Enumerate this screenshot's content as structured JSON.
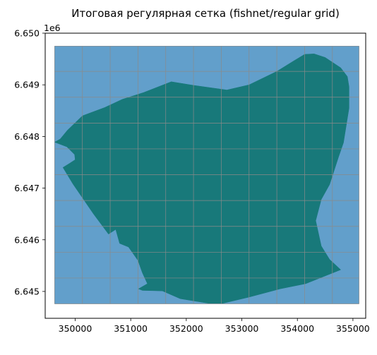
{
  "chart_data": {
    "type": "map",
    "title": "Итоговая регулярная сетка (fishnet/regular grid)",
    "y_offset_label": "1e6",
    "xlim": [
      349460,
      355230
    ],
    "ylim": [
      6644480,
      6650000
    ],
    "x_ticks": [
      350000,
      351000,
      352000,
      353000,
      354000,
      355000
    ],
    "x_tick_labels": [
      "350000",
      "351000",
      "352000",
      "353000",
      "354000",
      "355000"
    ],
    "y_ticks": [
      6645000,
      6646000,
      6647000,
      6648000,
      6649000,
      6650000
    ],
    "y_tick_labels": [
      "6.645",
      "6.646",
      "6.647",
      "6.648",
      "6.649",
      "6.650"
    ],
    "grid_extent": {
      "x": [
        349630,
        355110
      ],
      "y": [
        6644760,
        6649750
      ]
    },
    "grid_x_lines": [
      349630,
      350130,
      350630,
      351130,
      351630,
      352130,
      352630,
      353130,
      353630,
      354130,
      354630,
      355110
    ],
    "grid_y_lines": [
      6644760,
      6645260,
      6645760,
      6646260,
      6646760,
      6647260,
      6647760,
      6648260,
      6648760,
      6649260,
      6649750
    ],
    "polygon": [
      [
        349630,
        6647890
      ],
      [
        349730,
        6647950
      ],
      [
        349860,
        6648120
      ],
      [
        350130,
        6648400
      ],
      [
        350530,
        6648560
      ],
      [
        350850,
        6648720
      ],
      [
        351230,
        6648850
      ],
      [
        351730,
        6649060
      ],
      [
        352130,
        6648990
      ],
      [
        352730,
        6648900
      ],
      [
        353130,
        6649000
      ],
      [
        353630,
        6649260
      ],
      [
        353930,
        6649460
      ],
      [
        354130,
        6649590
      ],
      [
        354300,
        6649600
      ],
      [
        354500,
        6649530
      ],
      [
        354780,
        6649330
      ],
      [
        354900,
        6649160
      ],
      [
        354930,
        6648960
      ],
      [
        354930,
        6648550
      ],
      [
        354830,
        6647880
      ],
      [
        354740,
        6647600
      ],
      [
        354580,
        6647070
      ],
      [
        354430,
        6646780
      ],
      [
        354330,
        6646370
      ],
      [
        354430,
        6645880
      ],
      [
        354580,
        6645620
      ],
      [
        354780,
        6645420
      ],
      [
        354150,
        6645150
      ],
      [
        353690,
        6645050
      ],
      [
        353130,
        6644890
      ],
      [
        352660,
        6644770
      ],
      [
        352400,
        6644770
      ],
      [
        351890,
        6644860
      ],
      [
        351570,
        6645010
      ],
      [
        351210,
        6645020
      ],
      [
        351140,
        6645050
      ],
      [
        351300,
        6645150
      ],
      [
        351210,
        6645360
      ],
      [
        351130,
        6645600
      ],
      [
        350960,
        6645860
      ],
      [
        350800,
        6645930
      ],
      [
        350730,
        6646200
      ],
      [
        350600,
        6646110
      ],
      [
        350330,
        6646500
      ],
      [
        349960,
        6647080
      ],
      [
        349780,
        6647400
      ],
      [
        349900,
        6647480
      ],
      [
        350000,
        6647550
      ],
      [
        349990,
        6647650
      ],
      [
        349850,
        6647800
      ]
    ],
    "colors": {
      "grid_fill": "#629fcb",
      "grid_lines": "#8a8a8a",
      "polygon_fill": "#18797a",
      "axes": "#000000"
    }
  }
}
